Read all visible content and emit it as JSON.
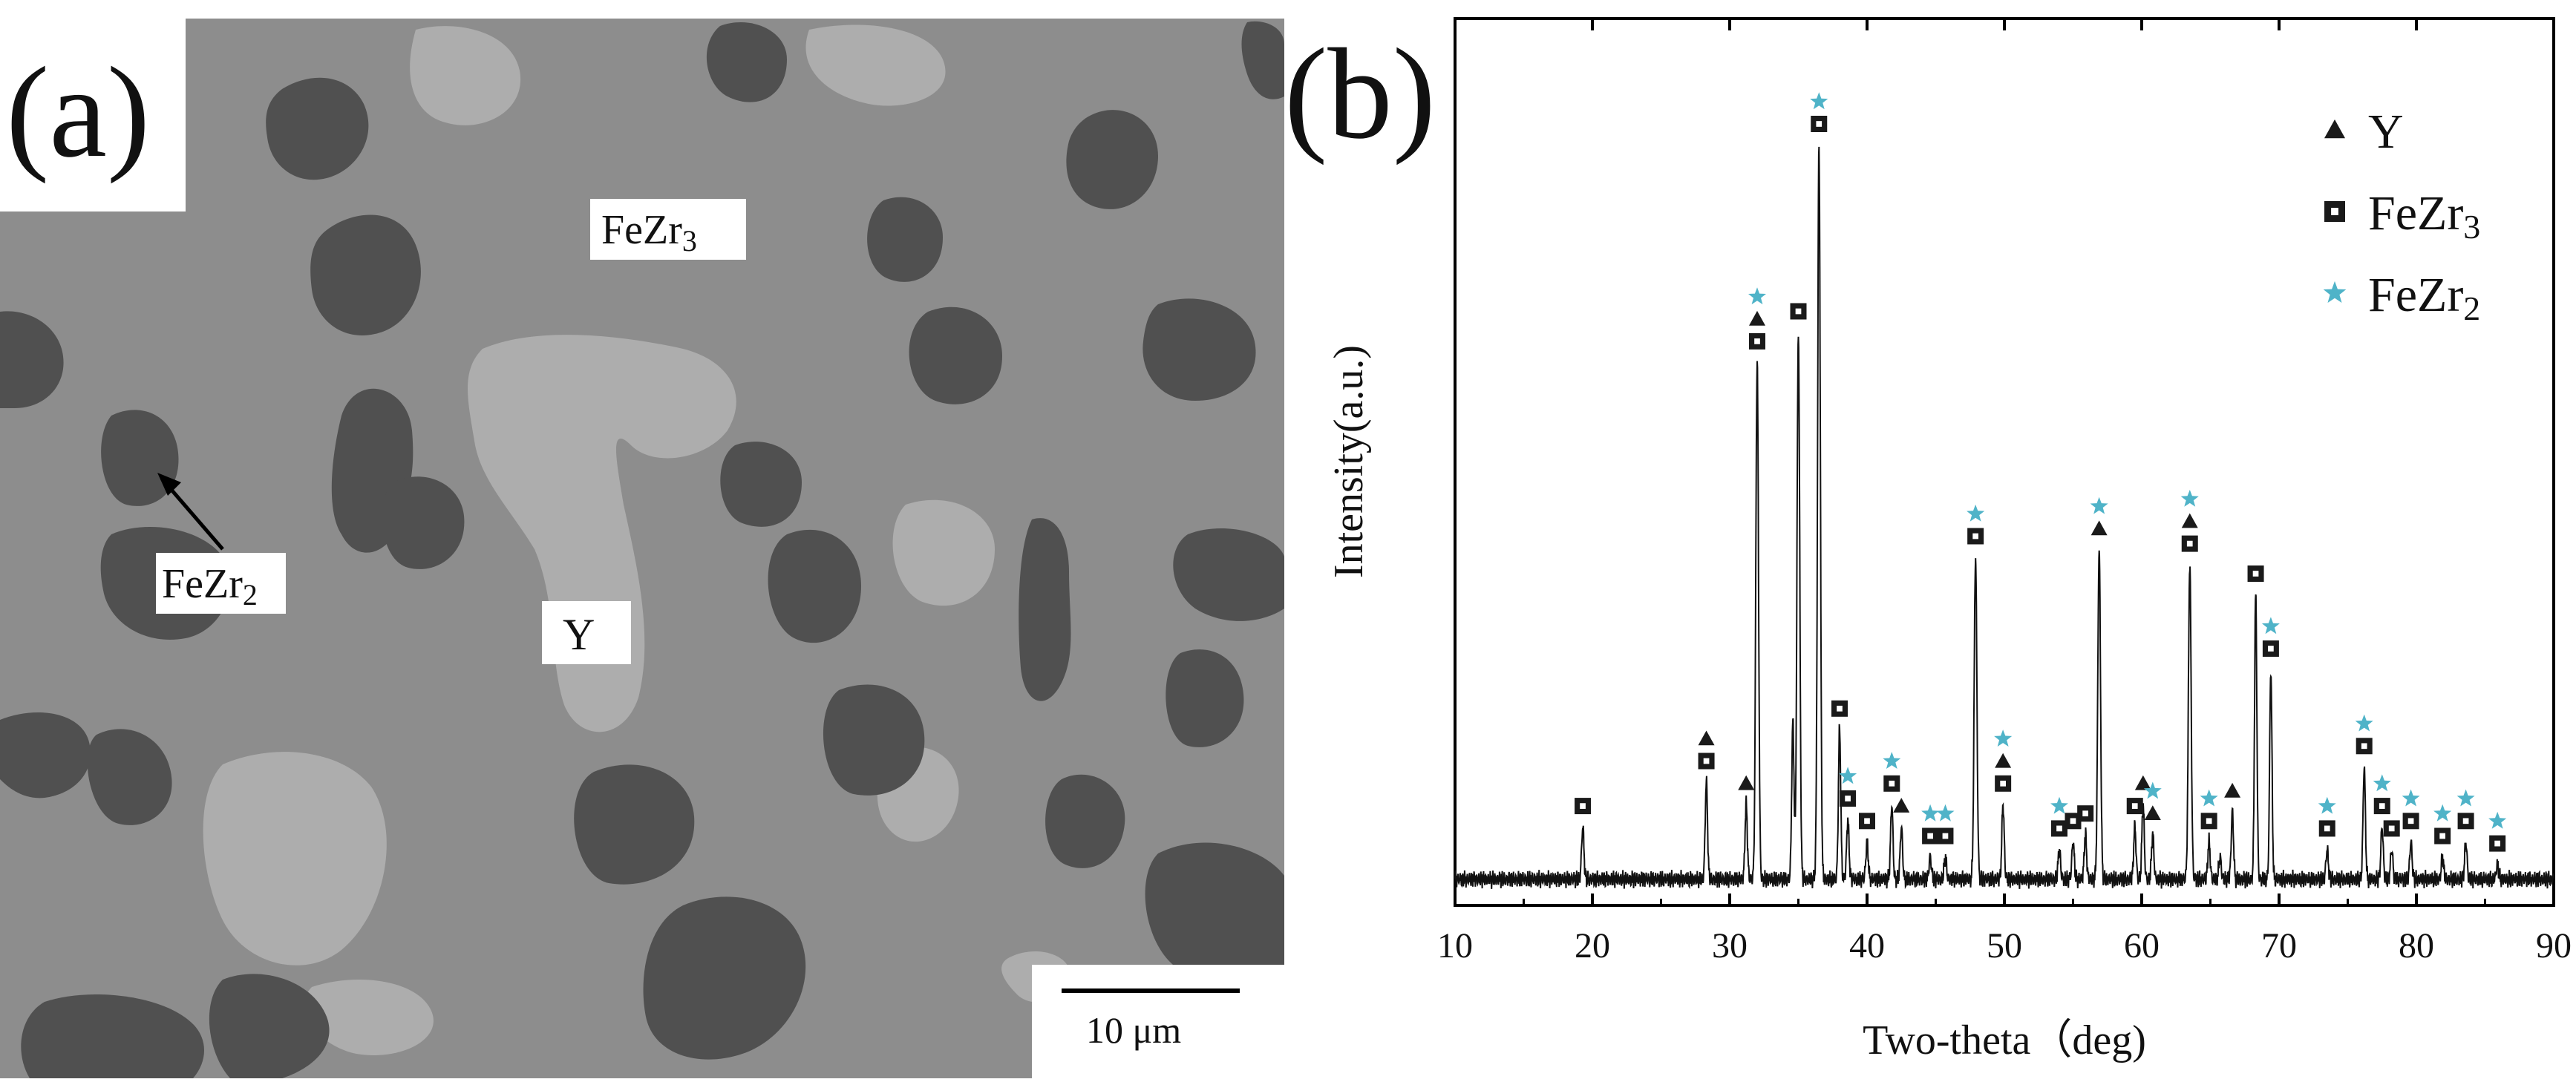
{
  "panel_a": {
    "panel_label": "(a)",
    "labels": {
      "fezr3": {
        "base": "FeZr",
        "sub": "3"
      },
      "fezr2": {
        "base": "FeZr",
        "sub": "2"
      },
      "y": "Y"
    },
    "scale_bar_text": "10 μm",
    "colors": {
      "matrix": "#8d8d8d",
      "dark_phase": "#505050",
      "light_phase": "#adadad"
    }
  },
  "panel_b": {
    "panel_label": "(b)"
  },
  "chart_data": {
    "type": "line",
    "title": "",
    "xlabel": "Two-theta（deg)",
    "ylabel": "Intensity(a.u.)",
    "xlim": [
      10,
      90
    ],
    "ylim": [
      0,
      100
    ],
    "xticks": [
      10,
      20,
      30,
      40,
      50,
      60,
      70,
      80,
      90
    ],
    "grid": false,
    "legend_position": "top-right",
    "baseline": 2,
    "series": [
      {
        "peaks": [
          {
            "x": 19.3,
            "y": 9
          },
          {
            "x": 28.3,
            "y": 15
          },
          {
            "x": 31.2,
            "y": 12
          },
          {
            "x": 32.0,
            "y": 71
          },
          {
            "x": 34.6,
            "y": 23
          },
          {
            "x": 35.0,
            "y": 75
          },
          {
            "x": 36.5,
            "y": 100
          },
          {
            "x": 38.0,
            "y": 22
          },
          {
            "x": 38.6,
            "y": 10
          },
          {
            "x": 40.0,
            "y": 7
          },
          {
            "x": 41.8,
            "y": 12
          },
          {
            "x": 42.5,
            "y": 9
          },
          {
            "x": 44.6,
            "y": 5
          },
          {
            "x": 45.7,
            "y": 5
          },
          {
            "x": 47.9,
            "y": 45
          },
          {
            "x": 49.9,
            "y": 12
          },
          {
            "x": 54.0,
            "y": 6
          },
          {
            "x": 55.0,
            "y": 7
          },
          {
            "x": 55.9,
            "y": 8
          },
          {
            "x": 56.9,
            "y": 46
          },
          {
            "x": 59.5,
            "y": 9
          },
          {
            "x": 60.1,
            "y": 12
          },
          {
            "x": 60.8,
            "y": 8
          },
          {
            "x": 64.9,
            "y": 7
          },
          {
            "x": 65.7,
            "y": 5
          },
          {
            "x": 66.6,
            "y": 11
          },
          {
            "x": 63.5,
            "y": 44
          },
          {
            "x": 68.3,
            "y": 40
          },
          {
            "x": 69.4,
            "y": 30
          },
          {
            "x": 73.5,
            "y": 6
          },
          {
            "x": 76.2,
            "y": 17
          },
          {
            "x": 77.5,
            "y": 9
          },
          {
            "x": 78.2,
            "y": 6
          },
          {
            "x": 79.6,
            "y": 7
          },
          {
            "x": 81.9,
            "y": 5
          },
          {
            "x": 83.6,
            "y": 7
          },
          {
            "x": 85.9,
            "y": 4
          }
        ]
      }
    ],
    "legend": [
      {
        "marker": "triangle",
        "label": {
          "base": "Y",
          "sub": ""
        },
        "color": "#1a1a1a"
      },
      {
        "marker": "square",
        "label": {
          "base": "FeZr",
          "sub": "3"
        },
        "color": "#1a1a1a"
      },
      {
        "marker": "star",
        "label": {
          "base": "FeZr",
          "sub": "2"
        },
        "color": "#4fb3c8"
      }
    ],
    "phase_markers": [
      {
        "x": 19.3,
        "y": 9,
        "stack": [
          "square"
        ]
      },
      {
        "x": 28.3,
        "y": 15,
        "stack": [
          "square",
          "triangle"
        ]
      },
      {
        "x": 31.2,
        "y": 12,
        "stack": [
          "triangle"
        ]
      },
      {
        "x": 32.0,
        "y": 71,
        "stack": [
          "square",
          "triangle",
          "star"
        ]
      },
      {
        "x": 35.0,
        "y": 75,
        "stack": [
          "square"
        ]
      },
      {
        "x": 36.5,
        "y": 100,
        "stack": [
          "square",
          "star"
        ]
      },
      {
        "x": 38.0,
        "y": 22,
        "stack": [
          "square"
        ]
      },
      {
        "x": 38.6,
        "y": 10,
        "stack": [
          "square",
          "star"
        ]
      },
      {
        "x": 40.0,
        "y": 7,
        "stack": [
          "square"
        ]
      },
      {
        "x": 41.8,
        "y": 12,
        "stack": [
          "square",
          "star"
        ]
      },
      {
        "x": 42.5,
        "y": 9,
        "stack": [
          "triangle"
        ]
      },
      {
        "x": 44.6,
        "y": 5,
        "stack": [
          "square",
          "star"
        ]
      },
      {
        "x": 45.7,
        "y": 5,
        "stack": [
          "square",
          "star"
        ]
      },
      {
        "x": 47.9,
        "y": 45,
        "stack": [
          "square",
          "star"
        ]
      },
      {
        "x": 49.9,
        "y": 12,
        "stack": [
          "square",
          "triangle",
          "star"
        ]
      },
      {
        "x": 54.0,
        "y": 6,
        "stack": [
          "square",
          "star"
        ]
      },
      {
        "x": 55.0,
        "y": 7,
        "stack": [
          "square"
        ]
      },
      {
        "x": 55.9,
        "y": 8,
        "stack": [
          "square"
        ]
      },
      {
        "x": 56.9,
        "y": 46,
        "stack": [
          "triangle",
          "star"
        ]
      },
      {
        "x": 59.5,
        "y": 9,
        "stack": [
          "square"
        ]
      },
      {
        "x": 60.1,
        "y": 12,
        "stack": [
          "triangle"
        ]
      },
      {
        "x": 60.8,
        "y": 8,
        "stack": [
          "triangle",
          "star"
        ]
      },
      {
        "x": 63.5,
        "y": 44,
        "stack": [
          "square",
          "triangle",
          "star"
        ]
      },
      {
        "x": 64.9,
        "y": 7,
        "stack": [
          "square",
          "star"
        ]
      },
      {
        "x": 66.6,
        "y": 11,
        "stack": [
          "triangle"
        ]
      },
      {
        "x": 68.3,
        "y": 40,
        "stack": [
          "square"
        ]
      },
      {
        "x": 69.4,
        "y": 30,
        "stack": [
          "square",
          "star"
        ]
      },
      {
        "x": 73.5,
        "y": 6,
        "stack": [
          "square",
          "star"
        ]
      },
      {
        "x": 76.2,
        "y": 17,
        "stack": [
          "square",
          "star"
        ]
      },
      {
        "x": 77.5,
        "y": 9,
        "stack": [
          "square",
          "star"
        ]
      },
      {
        "x": 78.2,
        "y": 6,
        "stack": [
          "square"
        ]
      },
      {
        "x": 79.6,
        "y": 7,
        "stack": [
          "square",
          "star"
        ]
      },
      {
        "x": 81.9,
        "y": 5,
        "stack": [
          "square",
          "star"
        ]
      },
      {
        "x": 83.6,
        "y": 7,
        "stack": [
          "square",
          "star"
        ]
      },
      {
        "x": 85.9,
        "y": 4,
        "stack": [
          "square",
          "star"
        ]
      }
    ]
  }
}
